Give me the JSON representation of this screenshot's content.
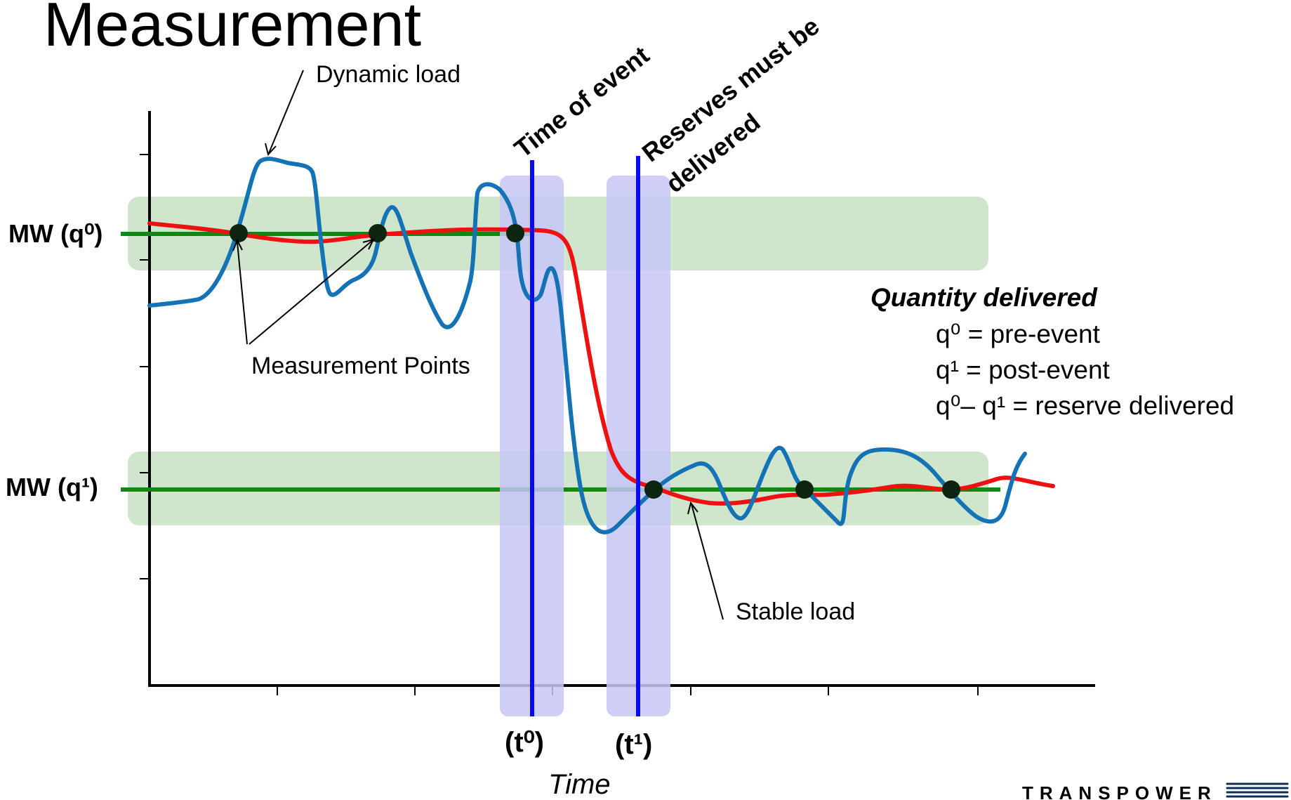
{
  "title": "Measurement",
  "axis": {
    "x_label": "Time"
  },
  "levels": {
    "q0_label": "MW (q⁰)",
    "q1_label": "MW (q¹)"
  },
  "times": {
    "t0_label": "(t⁰)",
    "t1_label": "(t¹)"
  },
  "event_labels": {
    "time_of_event": "Time of event",
    "reserves_line1": "Reserves must be",
    "reserves_line2": "delivered"
  },
  "annotations": {
    "dynamic_load": "Dynamic load",
    "measurement_points": "Measurement Points",
    "stable_load": "Stable load"
  },
  "legend": {
    "heading": "Quantity delivered",
    "lines": [
      "q⁰ = pre-event",
      "q¹ = post-event",
      "q⁰– q¹ = reserve delivered"
    ]
  },
  "logo": {
    "text": "TRANSPOWER"
  },
  "colors": {
    "band": "#cfe5cc",
    "window": "#c7c7f7",
    "level_line": "#118811",
    "event_line": "#0a0af0",
    "dynamic_load": "#1473b4",
    "stable_load": "#ee1111",
    "point": "#0d2410"
  }
}
